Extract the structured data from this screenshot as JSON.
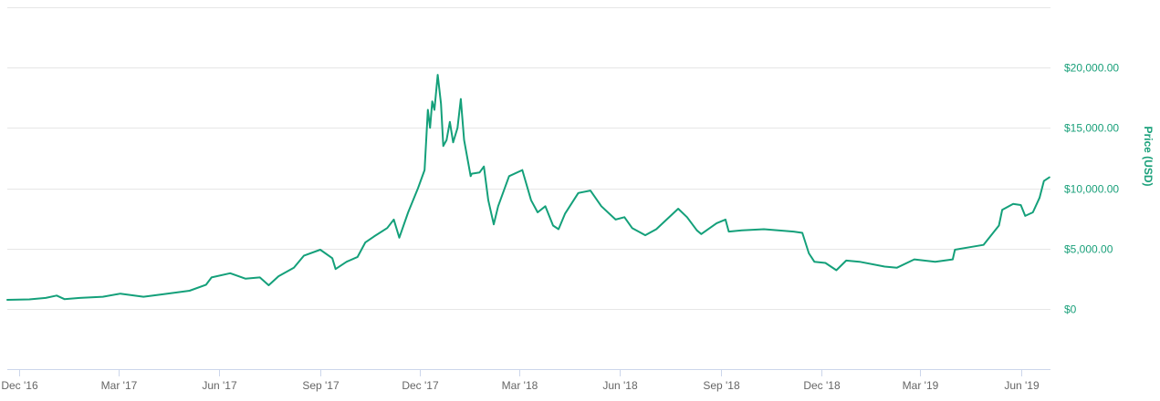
{
  "chart_data": {
    "type": "line",
    "title": "",
    "xlabel": "",
    "ylabel": "Price (USD)",
    "ylim": [
      -5000,
      25000
    ],
    "grid": true,
    "colors": {
      "line": "#14a07a",
      "axis_text": "#1aa07a",
      "x_text": "#666666",
      "grid": "#e6e6e6"
    },
    "y_ticks": [
      {
        "value": 0,
        "label": "$0"
      },
      {
        "value": 5000,
        "label": "$5,000.00"
      },
      {
        "value": 10000,
        "label": "$10,000.00"
      },
      {
        "value": 15000,
        "label": "$15,000.00"
      },
      {
        "value": 20000,
        "label": "$20,000.00"
      }
    ],
    "x_ticks": [
      {
        "date": "2016-12-01",
        "label": "Dec '16"
      },
      {
        "date": "2017-03-01",
        "label": "Mar '17"
      },
      {
        "date": "2017-06-01",
        "label": "Jun '17"
      },
      {
        "date": "2017-09-01",
        "label": "Sep '17"
      },
      {
        "date": "2017-12-01",
        "label": "Dec '17"
      },
      {
        "date": "2018-03-01",
        "label": "Mar '18"
      },
      {
        "date": "2018-06-01",
        "label": "Jun '18"
      },
      {
        "date": "2018-09-01",
        "label": "Sep '18"
      },
      {
        "date": "2018-12-01",
        "label": "Dec '18"
      },
      {
        "date": "2019-03-01",
        "label": "Mar '19"
      },
      {
        "date": "2019-06-01",
        "label": "Jun '19"
      }
    ],
    "xlim": [
      "2016-11-20",
      "2019-06-28"
    ],
    "series": [
      {
        "points": [
          [
            "2016-11-20",
            740
          ],
          [
            "2016-12-10",
            780
          ],
          [
            "2016-12-25",
            900
          ],
          [
            "2017-01-04",
            1100
          ],
          [
            "2017-01-11",
            800
          ],
          [
            "2017-01-25",
            900
          ],
          [
            "2017-02-15",
            1000
          ],
          [
            "2017-03-03",
            1260
          ],
          [
            "2017-03-24",
            1000
          ],
          [
            "2017-04-10",
            1200
          ],
          [
            "2017-05-05",
            1500
          ],
          [
            "2017-05-20",
            2000
          ],
          [
            "2017-05-25",
            2600
          ],
          [
            "2017-06-11",
            2950
          ],
          [
            "2017-06-25",
            2500
          ],
          [
            "2017-07-08",
            2600
          ],
          [
            "2017-07-16",
            1950
          ],
          [
            "2017-07-25",
            2700
          ],
          [
            "2017-08-08",
            3400
          ],
          [
            "2017-08-17",
            4400
          ],
          [
            "2017-09-01",
            4900
          ],
          [
            "2017-09-12",
            4200
          ],
          [
            "2017-09-15",
            3300
          ],
          [
            "2017-09-25",
            3900
          ],
          [
            "2017-10-05",
            4300
          ],
          [
            "2017-10-12",
            5500
          ],
          [
            "2017-10-20",
            6000
          ],
          [
            "2017-11-01",
            6700
          ],
          [
            "2017-11-07",
            7400
          ],
          [
            "2017-11-12",
            5900
          ],
          [
            "2017-11-20",
            8000
          ],
          [
            "2017-11-29",
            10000
          ],
          [
            "2017-12-05",
            11500
          ],
          [
            "2017-12-08",
            16500
          ],
          [
            "2017-12-10",
            15000
          ],
          [
            "2017-12-12",
            17200
          ],
          [
            "2017-12-14",
            16500
          ],
          [
            "2017-12-17",
            19400
          ],
          [
            "2017-12-20",
            17000
          ],
          [
            "2017-12-22",
            13500
          ],
          [
            "2017-12-25",
            14000
          ],
          [
            "2017-12-28",
            15500
          ],
          [
            "2017-12-31",
            13800
          ],
          [
            "2018-01-04",
            15000
          ],
          [
            "2018-01-07",
            17400
          ],
          [
            "2018-01-10",
            14000
          ],
          [
            "2018-01-16",
            11000
          ],
          [
            "2018-01-17",
            11200
          ],
          [
            "2018-01-24",
            11300
          ],
          [
            "2018-01-28",
            11800
          ],
          [
            "2018-02-01",
            9000
          ],
          [
            "2018-02-06",
            7000
          ],
          [
            "2018-02-10",
            8500
          ],
          [
            "2018-02-20",
            11000
          ],
          [
            "2018-03-04",
            11500
          ],
          [
            "2018-03-12",
            9000
          ],
          [
            "2018-03-18",
            8000
          ],
          [
            "2018-03-25",
            8500
          ],
          [
            "2018-04-01",
            6900
          ],
          [
            "2018-04-06",
            6600
          ],
          [
            "2018-04-12",
            7900
          ],
          [
            "2018-04-24",
            9600
          ],
          [
            "2018-05-05",
            9800
          ],
          [
            "2018-05-15",
            8500
          ],
          [
            "2018-05-28",
            7400
          ],
          [
            "2018-06-05",
            7600
          ],
          [
            "2018-06-12",
            6700
          ],
          [
            "2018-06-24",
            6100
          ],
          [
            "2018-07-04",
            6600
          ],
          [
            "2018-07-24",
            8300
          ],
          [
            "2018-08-01",
            7600
          ],
          [
            "2018-08-10",
            6500
          ],
          [
            "2018-08-14",
            6200
          ],
          [
            "2018-08-28",
            7100
          ],
          [
            "2018-09-05",
            7400
          ],
          [
            "2018-09-08",
            6400
          ],
          [
            "2018-09-20",
            6500
          ],
          [
            "2018-10-10",
            6600
          ],
          [
            "2018-11-06",
            6400
          ],
          [
            "2018-11-14",
            6300
          ],
          [
            "2018-11-20",
            4600
          ],
          [
            "2018-11-25",
            3900
          ],
          [
            "2018-12-05",
            3800
          ],
          [
            "2018-12-15",
            3200
          ],
          [
            "2018-12-24",
            4000
          ],
          [
            "2019-01-05",
            3900
          ],
          [
            "2019-01-28",
            3500
          ],
          [
            "2019-02-08",
            3400
          ],
          [
            "2019-02-24",
            4100
          ],
          [
            "2019-03-15",
            3900
          ],
          [
            "2019-03-31",
            4100
          ],
          [
            "2019-04-02",
            4900
          ],
          [
            "2019-04-15",
            5100
          ],
          [
            "2019-04-28",
            5300
          ],
          [
            "2019-05-12",
            6900
          ],
          [
            "2019-05-15",
            8200
          ],
          [
            "2019-05-25",
            8700
          ],
          [
            "2019-06-01",
            8600
          ],
          [
            "2019-06-05",
            7700
          ],
          [
            "2019-06-12",
            8000
          ],
          [
            "2019-06-18",
            9200
          ],
          [
            "2019-06-22",
            10600
          ],
          [
            "2019-06-27",
            10900
          ]
        ]
      }
    ]
  }
}
